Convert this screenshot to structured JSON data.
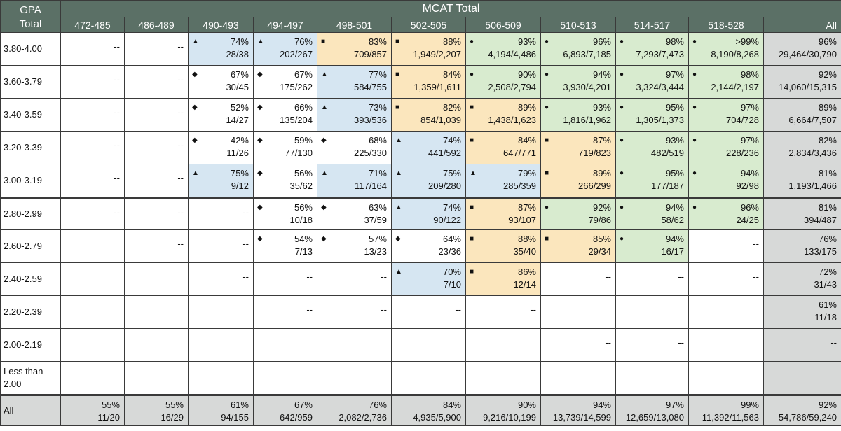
{
  "header": {
    "gpa_label_line1": "GPA",
    "gpa_label_line2": "Total",
    "mcat_label": "MCAT Total",
    "columns": [
      "472-485",
      "486-489",
      "490-493",
      "494-497",
      "498-501",
      "502-505",
      "506-509",
      "510-513",
      "514-517",
      "518-528",
      "All"
    ]
  },
  "colors": {
    "header_bg": "#5b7066",
    "blue": "#d6e6f2",
    "yellow": "#fbe6bd",
    "green": "#d8ebcf",
    "grey": "#d7d9d8"
  },
  "chart_data": {
    "type": "table",
    "title": "MCAT Total",
    "row_header": "GPA Total",
    "symbols": {
      "diamond": "◆",
      "triangle": "▲",
      "square": "■",
      "circle": "●"
    },
    "rows": [
      {
        "label": "3.80-4.00",
        "cells": [
          {
            "dash": "--"
          },
          {
            "dash": "--"
          },
          {
            "sym": "triangle",
            "pct": "74%",
            "frac": "28/38",
            "color": "blue"
          },
          {
            "sym": "triangle",
            "pct": "76%",
            "frac": "202/267",
            "color": "blue"
          },
          {
            "sym": "square",
            "pct": "83%",
            "frac": "709/857",
            "color": "yellow"
          },
          {
            "sym": "square",
            "pct": "88%",
            "frac": "1,949/2,207",
            "color": "yellow"
          },
          {
            "sym": "circle",
            "pct": "93%",
            "frac": "4,194/4,486",
            "color": "green"
          },
          {
            "sym": "circle",
            "pct": "96%",
            "frac": "6,893/7,185",
            "color": "green"
          },
          {
            "sym": "circle",
            "pct": "98%",
            "frac": "7,293/7,473",
            "color": "green"
          },
          {
            "sym": "circle",
            "pct": ">99%",
            "frac": "8,190/8,268",
            "color": "green"
          },
          {
            "pct": "96%",
            "frac": "29,464/30,790",
            "color": "grey"
          }
        ]
      },
      {
        "label": "3.60-3.79",
        "cells": [
          {
            "dash": "--"
          },
          {
            "dash": "--"
          },
          {
            "sym": "diamond",
            "pct": "67%",
            "frac": "30/45"
          },
          {
            "sym": "diamond",
            "pct": "67%",
            "frac": "175/262"
          },
          {
            "sym": "triangle",
            "pct": "77%",
            "frac": "584/755",
            "color": "blue"
          },
          {
            "sym": "square",
            "pct": "84%",
            "frac": "1,359/1,611",
            "color": "yellow"
          },
          {
            "sym": "circle",
            "pct": "90%",
            "frac": "2,508/2,794",
            "color": "green"
          },
          {
            "sym": "circle",
            "pct": "94%",
            "frac": "3,930/4,201",
            "color": "green"
          },
          {
            "sym": "circle",
            "pct": "97%",
            "frac": "3,324/3,444",
            "color": "green"
          },
          {
            "sym": "circle",
            "pct": "98%",
            "frac": "2,144/2,197",
            "color": "green"
          },
          {
            "pct": "92%",
            "frac": "14,060/15,315",
            "color": "grey"
          }
        ]
      },
      {
        "label": "3.40-3.59",
        "cells": [
          {
            "dash": "--"
          },
          {
            "dash": "--"
          },
          {
            "sym": "diamond",
            "pct": "52%",
            "frac": "14/27"
          },
          {
            "sym": "diamond",
            "pct": "66%",
            "frac": "135/204"
          },
          {
            "sym": "triangle",
            "pct": "73%",
            "frac": "393/536",
            "color": "blue"
          },
          {
            "sym": "square",
            "pct": "82%",
            "frac": "854/1,039",
            "color": "yellow"
          },
          {
            "sym": "square",
            "pct": "89%",
            "frac": "1,438/1,623",
            "color": "yellow"
          },
          {
            "sym": "circle",
            "pct": "93%",
            "frac": "1,816/1,962",
            "color": "green"
          },
          {
            "sym": "circle",
            "pct": "95%",
            "frac": "1,305/1,373",
            "color": "green"
          },
          {
            "sym": "circle",
            "pct": "97%",
            "frac": "704/728",
            "color": "green"
          },
          {
            "pct": "89%",
            "frac": "6,664/7,507",
            "color": "grey"
          }
        ]
      },
      {
        "label": "3.20-3.39",
        "cells": [
          {
            "dash": "--"
          },
          {
            "dash": "--"
          },
          {
            "sym": "diamond",
            "pct": "42%",
            "frac": "11/26"
          },
          {
            "sym": "diamond",
            "pct": "59%",
            "frac": "77/130"
          },
          {
            "sym": "diamond",
            "pct": "68%",
            "frac": "225/330"
          },
          {
            "sym": "triangle",
            "pct": "74%",
            "frac": "441/592",
            "color": "blue"
          },
          {
            "sym": "square",
            "pct": "84%",
            "frac": "647/771",
            "color": "yellow"
          },
          {
            "sym": "square",
            "pct": "87%",
            "frac": "719/823",
            "color": "yellow"
          },
          {
            "sym": "circle",
            "pct": "93%",
            "frac": "482/519",
            "color": "green"
          },
          {
            "sym": "circle",
            "pct": "97%",
            "frac": "228/236",
            "color": "green"
          },
          {
            "pct": "82%",
            "frac": "2,834/3,436",
            "color": "grey"
          }
        ]
      },
      {
        "label": "3.00-3.19",
        "cells": [
          {
            "dash": "--"
          },
          {
            "dash": "--"
          },
          {
            "sym": "triangle",
            "pct": "75%",
            "frac": "9/12",
            "color": "blue"
          },
          {
            "sym": "diamond",
            "pct": "56%",
            "frac": "35/62"
          },
          {
            "sym": "triangle",
            "pct": "71%",
            "frac": "117/164",
            "color": "blue"
          },
          {
            "sym": "triangle",
            "pct": "75%",
            "frac": "209/280",
            "color": "blue"
          },
          {
            "sym": "triangle",
            "pct": "79%",
            "frac": "285/359",
            "color": "blue"
          },
          {
            "sym": "square",
            "pct": "89%",
            "frac": "266/299",
            "color": "yellow"
          },
          {
            "sym": "circle",
            "pct": "95%",
            "frac": "177/187",
            "color": "green"
          },
          {
            "sym": "circle",
            "pct": "94%",
            "frac": "92/98",
            "color": "green"
          },
          {
            "pct": "81%",
            "frac": "1,193/1,466",
            "color": "grey"
          }
        ]
      },
      {
        "label": "2.80-2.99",
        "cells": [
          {
            "dash": "--"
          },
          {
            "dash": "--"
          },
          {
            "dash": "--"
          },
          {
            "sym": "diamond",
            "pct": "56%",
            "frac": "10/18"
          },
          {
            "sym": "diamond",
            "pct": "63%",
            "frac": "37/59"
          },
          {
            "sym": "triangle",
            "pct": "74%",
            "frac": "90/122",
            "color": "blue"
          },
          {
            "sym": "square",
            "pct": "87%",
            "frac": "93/107",
            "color": "yellow"
          },
          {
            "sym": "circle",
            "pct": "92%",
            "frac": "79/86",
            "color": "green"
          },
          {
            "sym": "circle",
            "pct": "94%",
            "frac": "58/62",
            "color": "green"
          },
          {
            "sym": "circle",
            "pct": "96%",
            "frac": "24/25",
            "color": "green"
          },
          {
            "pct": "81%",
            "frac": "394/487",
            "color": "grey"
          }
        ]
      },
      {
        "label": "2.60-2.79",
        "cells": [
          {},
          {
            "dash": "--"
          },
          {
            "dash": "--"
          },
          {
            "sym": "diamond",
            "pct": "54%",
            "frac": "7/13"
          },
          {
            "sym": "diamond",
            "pct": "57%",
            "frac": "13/23"
          },
          {
            "sym": "diamond",
            "pct": "64%",
            "frac": "23/36"
          },
          {
            "sym": "square",
            "pct": "88%",
            "frac": "35/40",
            "color": "yellow"
          },
          {
            "sym": "square",
            "pct": "85%",
            "frac": "29/34",
            "color": "yellow"
          },
          {
            "sym": "circle",
            "pct": "94%",
            "frac": "16/17",
            "color": "green"
          },
          {
            "dash": "--"
          },
          {
            "pct": "76%",
            "frac": "133/175",
            "color": "grey"
          }
        ]
      },
      {
        "label": "2.40-2.59",
        "cells": [
          {},
          {},
          {
            "dash": "--"
          },
          {
            "dash": "--"
          },
          {
            "dash": "--"
          },
          {
            "sym": "triangle",
            "pct": "70%",
            "frac": "7/10",
            "color": "blue"
          },
          {
            "sym": "square",
            "pct": "86%",
            "frac": "12/14",
            "color": "yellow"
          },
          {
            "dash": "--"
          },
          {
            "dash": "--"
          },
          {
            "dash": "--"
          },
          {
            "pct": "72%",
            "frac": "31/43",
            "color": "grey"
          }
        ]
      },
      {
        "label": "2.20-2.39",
        "cells": [
          {},
          {},
          {},
          {
            "dash": "--"
          },
          {
            "dash": "--"
          },
          {
            "dash": "--"
          },
          {
            "dash": "--"
          },
          {},
          {},
          {},
          {
            "pct": "61%",
            "frac": "11/18",
            "color": "grey"
          }
        ]
      },
      {
        "label": "2.00-2.19",
        "cells": [
          {},
          {},
          {},
          {},
          {},
          {},
          {},
          {
            "dash": "--"
          },
          {
            "dash": "--"
          },
          {},
          {
            "dash": "--",
            "color": "grey"
          }
        ]
      },
      {
        "label": "Less than 2.00",
        "cells": [
          {},
          {},
          {},
          {},
          {},
          {},
          {},
          {},
          {},
          {},
          {
            "color": "grey"
          }
        ]
      },
      {
        "label": "All",
        "cells": [
          {
            "pct": "55%",
            "frac": "11/20",
            "color": "grey"
          },
          {
            "pct": "55%",
            "frac": "16/29",
            "color": "grey"
          },
          {
            "pct": "61%",
            "frac": "94/155",
            "color": "grey"
          },
          {
            "pct": "67%",
            "frac": "642/959",
            "color": "grey"
          },
          {
            "pct": "76%",
            "frac": "2,082/2,736",
            "color": "grey"
          },
          {
            "pct": "84%",
            "frac": "4,935/5,900",
            "color": "grey"
          },
          {
            "pct": "90%",
            "frac": "9,216/10,199",
            "color": "grey"
          },
          {
            "pct": "94%",
            "frac": "13,739/14,599",
            "color": "grey"
          },
          {
            "pct": "97%",
            "frac": "12,659/13,080",
            "color": "grey"
          },
          {
            "pct": "99%",
            "frac": "11,392/11,563",
            "color": "grey"
          },
          {
            "pct": "92%",
            "frac": "54,786/59,240",
            "color": "grey"
          }
        ]
      }
    ]
  }
}
